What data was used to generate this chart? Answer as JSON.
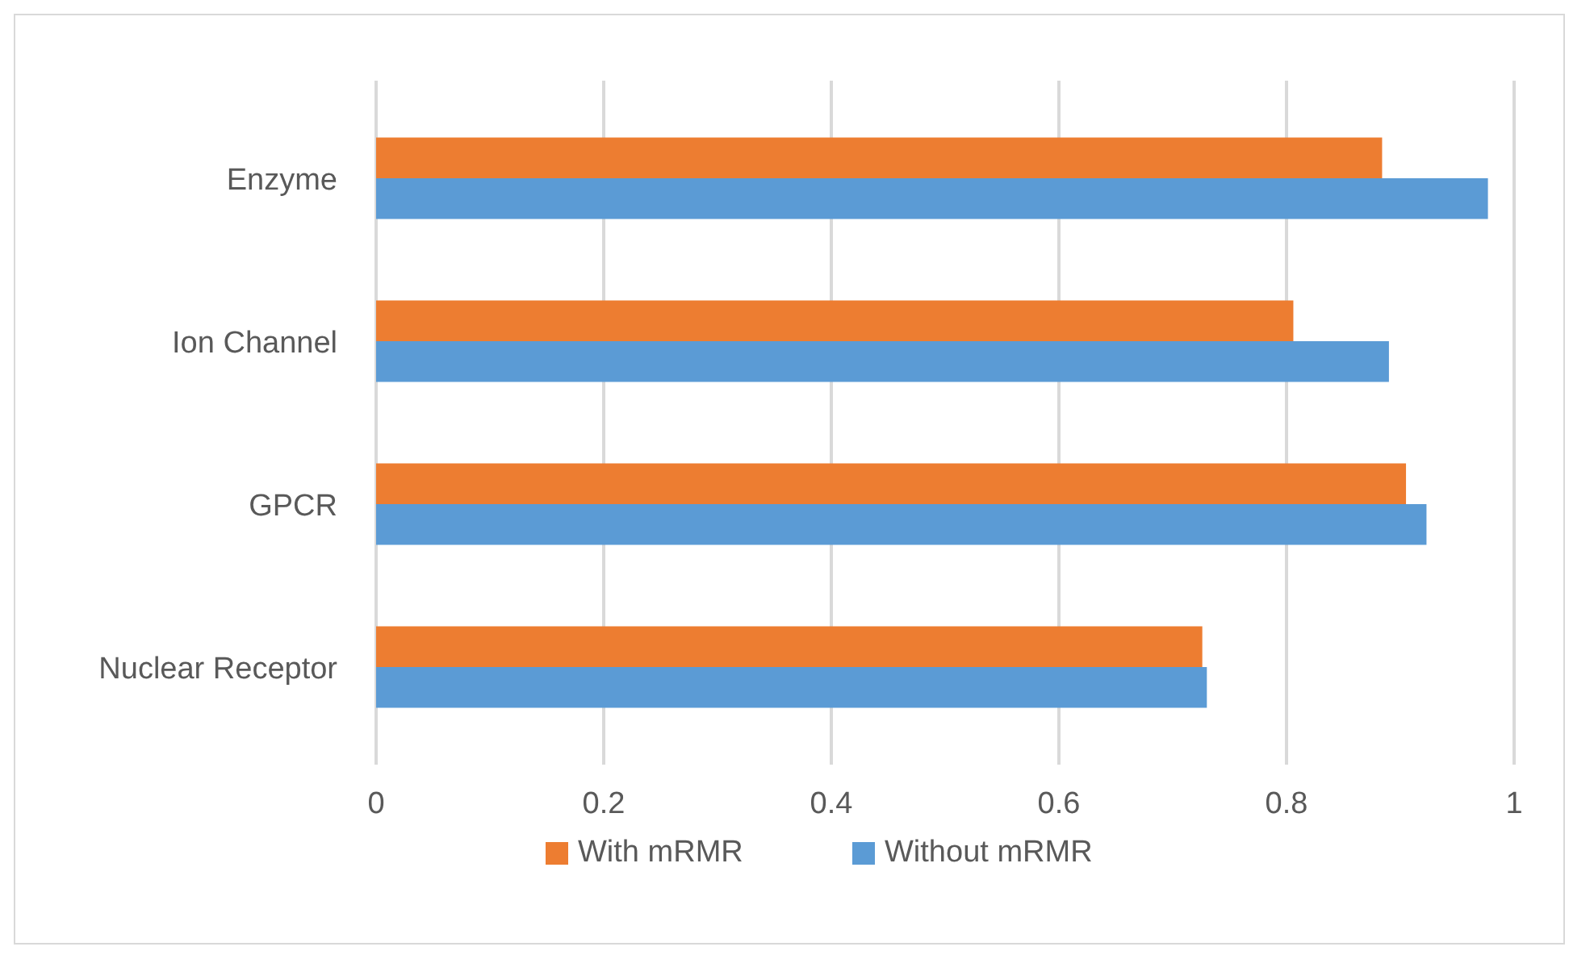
{
  "chart_data": {
    "type": "bar",
    "orientation": "horizontal",
    "categories": [
      "Enzyme",
      "Ion Channel",
      "GPCR",
      "Nuclear Receptor"
    ],
    "series": [
      {
        "name": "With mRMR",
        "color": "#ed7d31",
        "values": [
          0.884,
          0.806,
          0.905,
          0.726
        ]
      },
      {
        "name": "Without mRMR",
        "color": "#5b9bd5",
        "values": [
          0.977,
          0.89,
          0.923,
          0.73
        ]
      }
    ],
    "xlim": [
      0,
      1
    ],
    "xticks": [
      0,
      0.2,
      0.4,
      0.6,
      0.8,
      1
    ],
    "grid": "x",
    "legend": "bottom"
  }
}
